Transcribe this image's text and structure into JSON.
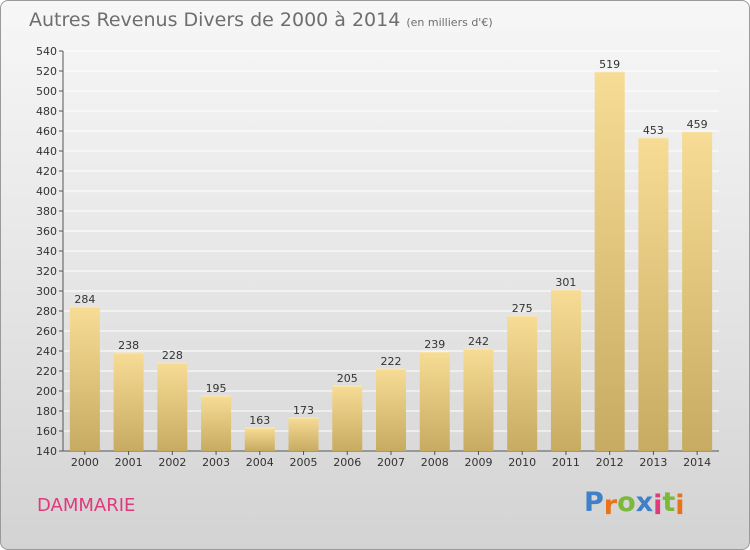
{
  "title": {
    "main": "Autres Revenus Divers de 2000 à 2014",
    "unit": "(en milliers d'€)"
  },
  "commune": "DAMMARIE",
  "logo": {
    "letters": [
      "P",
      "r",
      "o",
      "x",
      "i",
      "t",
      "i"
    ],
    "colors": [
      "#3f80c8",
      "#e8731c",
      "#7cb83a",
      "#3f80c8",
      "#e0397c",
      "#7cb83a",
      "#e8731c"
    ]
  },
  "colors": {
    "bar_top": "#f7dc95",
    "bar_bottom": "#c8ab62",
    "commune": "#e0397c"
  },
  "chart_data": {
    "type": "bar",
    "categories": [
      "2000",
      "2001",
      "2002",
      "2003",
      "2004",
      "2005",
      "2006",
      "2007",
      "2008",
      "2009",
      "2010",
      "2011",
      "2012",
      "2013",
      "2014"
    ],
    "values": [
      284,
      238,
      228,
      195,
      163,
      173,
      205,
      222,
      239,
      242,
      275,
      301,
      519,
      453,
      459
    ],
    "ylim": [
      140,
      540
    ],
    "yticks": [
      140,
      160,
      180,
      200,
      220,
      240,
      260,
      280,
      300,
      320,
      340,
      360,
      380,
      400,
      420,
      440,
      460,
      480,
      500,
      520,
      540
    ],
    "xlabel": "",
    "ylabel": "",
    "grid": true
  }
}
